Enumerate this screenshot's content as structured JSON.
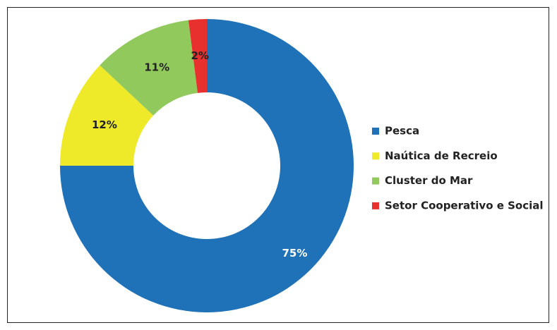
{
  "chart_data": {
    "type": "donut",
    "categories": [
      "Pesca",
      "Naútica de Recreio",
      "Cluster do Mar",
      "Setor Cooperativo e Social"
    ],
    "values": [
      75,
      12,
      11,
      2
    ],
    "value_labels": [
      "75%",
      "12%",
      "11%",
      "2%"
    ],
    "colors": [
      "#1f72b8",
      "#eeea2a",
      "#92c95c",
      "#e8312e"
    ],
    "legend": "right"
  }
}
